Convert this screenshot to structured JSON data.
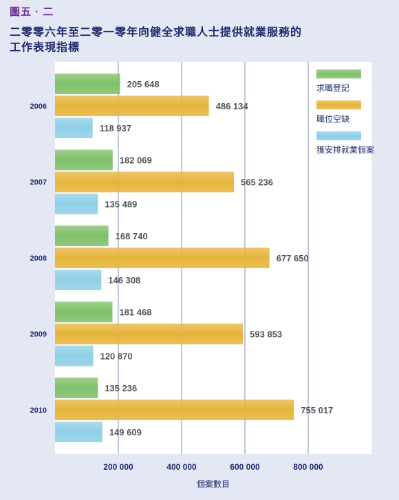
{
  "figure_label": "圖五 · 二",
  "title_lines": [
    "二零零六年至二零一零年向健全求職人士提供就業服務的",
    "工作表現指標"
  ],
  "colors": {
    "job_seekers": "#7fbf68",
    "vacancies": "#e6b43a",
    "placements": "#8ecfe6",
    "gridline": "#7f8fb8",
    "background": "#e4e8f4",
    "plot_area": "#ffffff"
  },
  "chart_data": {
    "type": "bar",
    "orientation": "horizontal",
    "categories": [
      "2006",
      "2007",
      "2008",
      "2009",
      "2010"
    ],
    "series": [
      {
        "name": "求職登記",
        "values": [
          205648,
          182069,
          168740,
          181468,
          135236
        ],
        "value_labels": [
          "205 648",
          "182 069",
          "168 740",
          "181 468",
          "135 236"
        ]
      },
      {
        "name": "職位空缺",
        "values": [
          486134,
          565236,
          677650,
          593853,
          755017
        ],
        "value_labels": [
          "486 134",
          "565 236",
          "677 650",
          "593 853",
          "755 017"
        ]
      },
      {
        "name": "獲安排就業個案",
        "values": [
          118937,
          135489,
          146308,
          120870,
          149609
        ],
        "value_labels": [
          "118 937",
          "135 489",
          "146 308",
          "120 870",
          "149 609"
        ]
      }
    ],
    "xlabel": "個案數目",
    "ylabel": "",
    "xlim": [
      0,
      1000000
    ],
    "xticks": [
      200000,
      400000,
      600000,
      800000
    ],
    "xtick_labels": [
      "200 000",
      "400 000",
      "600 000",
      "800 000"
    ],
    "grid": true,
    "legend_position": "top-right"
  }
}
